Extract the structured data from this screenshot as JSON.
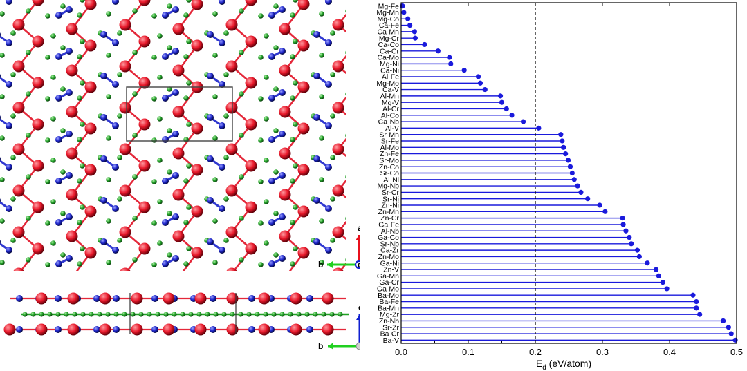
{
  "crystal": {
    "top_view": {
      "axis_up": "a",
      "axis_left": "b",
      "axis_out": "c"
    },
    "side_view": {
      "axis_up": "c",
      "axis_left": "b"
    },
    "colors": {
      "red_atom": "#e8182a",
      "blue_atom": "#1c24c8",
      "green_atom": "#22a028",
      "red_bond": "#e4283a",
      "blue_bond": "#3038d0",
      "green_bond": "#20a024",
      "axis_red": "#e8101c",
      "axis_green": "#20d020",
      "axis_blue": "#1020d0"
    }
  },
  "chart_data": {
    "type": "lollipop",
    "orientation": "horizontal",
    "xlabel": "E_d (eV/atom)",
    "xlim": [
      0.0,
      0.5
    ],
    "xticks": [
      "0.0",
      "0.1",
      "0.2",
      "0.3",
      "0.4",
      "0.5"
    ],
    "threshold": 0.2,
    "threshold_style": "dashed",
    "grid": false,
    "colors": {
      "series": "#1a1adc",
      "threshold": "#000000"
    },
    "categories": [
      "Mg-Fe",
      "Mg-Mn",
      "Mg-Co",
      "Ca-Fe",
      "Ca-Mn",
      "Mg-Cr",
      "Ca-Co",
      "Ca-Cr",
      "Ca-Mo",
      "Mg-Ni",
      "Ca-Ni",
      "Al-Fe",
      "Mg-Mo",
      "Ca-V",
      "Al-Mn",
      "Mg-V",
      "Al-Cr",
      "Al-Co",
      "Ca-Nb",
      "Al-V",
      "Sr-Mn",
      "Sr-Fe",
      "Al-Mo",
      "Zn-Fe",
      "Sr-Mo",
      "Zn-Co",
      "Sr-Co",
      "Al-Ni",
      "Mg-Nb",
      "Sr-Cr",
      "Sr-Ni",
      "Zn-Ni",
      "Zn-Mn",
      "Zn-Cr",
      "Ga-Fe",
      "Al-Nb",
      "Ga-Co",
      "Sr-Nb",
      "Ca-Zr",
      "Zn-Mo",
      "Ga-Ni",
      "Zn-V",
      "Ga-Mn",
      "Ga-Cr",
      "Ga-Mo",
      "Ba-Mo",
      "Ba-Fe",
      "Ba-Mn",
      "Mg-Zr",
      "Zn-Nb",
      "Sr-Zr",
      "Ba-Cr",
      "Ba-V"
    ],
    "values": [
      0.002,
      0.004,
      0.01,
      0.013,
      0.02,
      0.021,
      0.035,
      0.055,
      0.072,
      0.074,
      0.094,
      0.115,
      0.118,
      0.125,
      0.148,
      0.15,
      0.157,
      0.165,
      0.182,
      0.205,
      0.238,
      0.24,
      0.242,
      0.245,
      0.249,
      0.252,
      0.255,
      0.258,
      0.263,
      0.268,
      0.278,
      0.296,
      0.304,
      0.33,
      0.331,
      0.335,
      0.34,
      0.343,
      0.352,
      0.355,
      0.367,
      0.38,
      0.384,
      0.39,
      0.396,
      0.435,
      0.44,
      0.44,
      0.445,
      0.48,
      0.488,
      0.492,
      0.498
    ]
  }
}
